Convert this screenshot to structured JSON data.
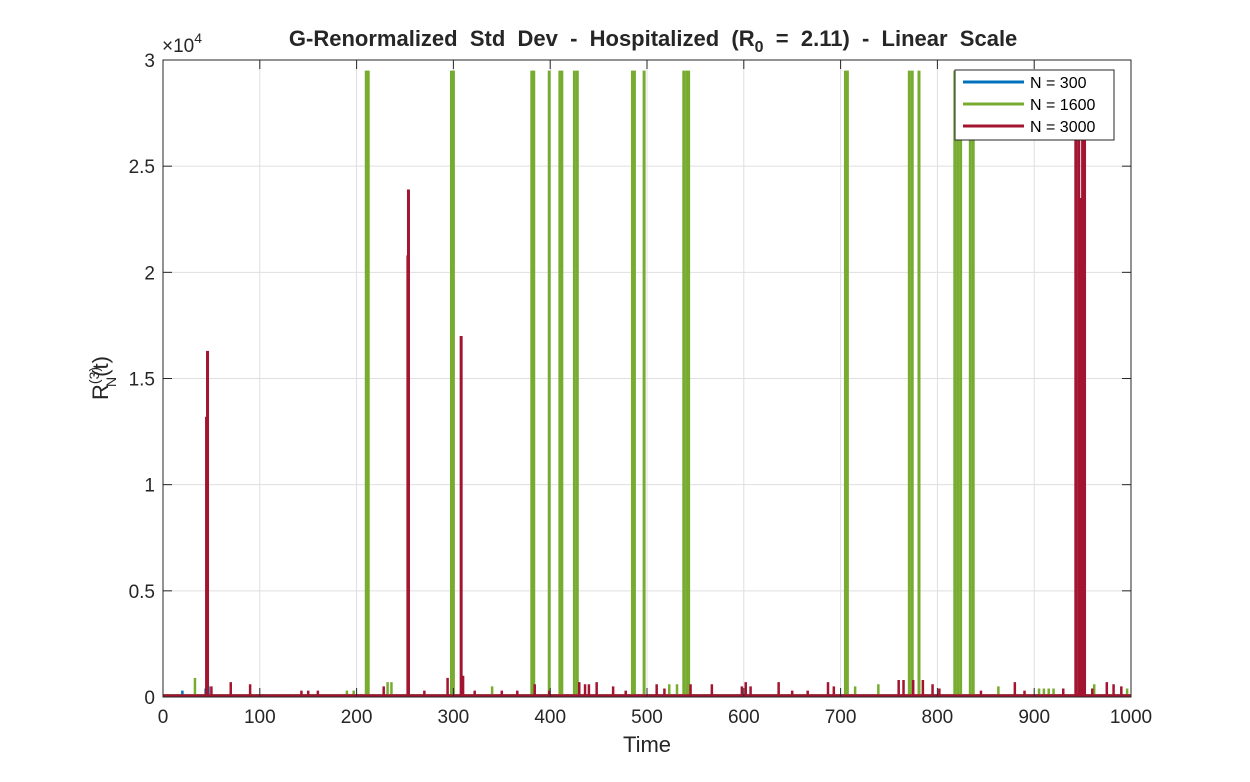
{
  "chart_data": {
    "type": "line",
    "title_parts": {
      "prefix": "G-Renormalized  Std  Dev  -  Hospitalized  (R",
      "subscript": "0",
      "suffix": "  =  2.11)  -  Linear  Scale"
    },
    "xlabel": "Time",
    "ylabel_parts": {
      "base": "R",
      "sup": "(3)",
      "sub": "N",
      "suffix": "(t)"
    },
    "xlim": [
      0,
      1000
    ],
    "ylim": [
      0,
      30000
    ],
    "x_ticks": [
      0,
      100,
      200,
      300,
      400,
      500,
      600,
      700,
      800,
      900,
      1000
    ],
    "y_ticks": [
      0,
      0.5,
      1,
      1.5,
      2,
      2.5,
      3
    ],
    "y_tick_labels": [
      "0",
      "0.5",
      "1",
      "1.5",
      "2",
      "2.5",
      "3"
    ],
    "y_exponent_label": {
      "base": "×10",
      "exp": "4"
    },
    "grid": true,
    "legend_position": "top-right",
    "series": [
      {
        "name": "N = 300",
        "color": "#0072BD",
        "spikes": [
          [
            20,
            300
          ],
          [
            44,
            400
          ],
          [
            47,
            500
          ]
        ]
      },
      {
        "name": "N = 1600",
        "color": "#77AC30",
        "spikes": [
          [
            33,
            900
          ],
          [
            190,
            300
          ],
          [
            197,
            300
          ],
          [
            210,
            29500
          ],
          [
            212,
            29500
          ],
          [
            232,
            700
          ],
          [
            236,
            700
          ],
          [
            298,
            29500
          ],
          [
            300,
            29500
          ],
          [
            340,
            500
          ],
          [
            381,
            29500
          ],
          [
            383,
            29500
          ],
          [
            399,
            29500
          ],
          [
            410,
            29500
          ],
          [
            412,
            29500
          ],
          [
            425,
            29500
          ],
          [
            428,
            29500
          ],
          [
            485,
            29500
          ],
          [
            487,
            29500
          ],
          [
            497,
            29500
          ],
          [
            523,
            600
          ],
          [
            531,
            600
          ],
          [
            538,
            29500
          ],
          [
            541,
            29500
          ],
          [
            543,
            29500
          ],
          [
            705,
            29500
          ],
          [
            707,
            29500
          ],
          [
            715,
            500
          ],
          [
            739,
            600
          ],
          [
            771,
            29500
          ],
          [
            774,
            29500
          ],
          [
            781,
            29500
          ],
          [
            818,
            29500
          ],
          [
            821,
            29500
          ],
          [
            824,
            29500
          ],
          [
            834,
            29500
          ],
          [
            837,
            29500
          ],
          [
            863,
            500
          ],
          [
            905,
            400
          ],
          [
            910,
            400
          ],
          [
            915,
            400
          ],
          [
            920,
            400
          ],
          [
            962,
            600
          ],
          [
            996,
            400
          ]
        ]
      },
      {
        "name": "N = 3000",
        "color": "#A2142F",
        "spikes": [
          [
            50,
            500
          ],
          [
            70,
            700
          ],
          [
            90,
            600
          ],
          [
            143,
            300
          ],
          [
            150,
            300
          ],
          [
            160,
            300
          ],
          [
            228,
            500
          ],
          [
            270,
            300
          ],
          [
            294,
            900
          ],
          [
            310,
            1000
          ],
          [
            322,
            300
          ],
          [
            350,
            300
          ],
          [
            366,
            300
          ],
          [
            384,
            600
          ],
          [
            399,
            300
          ],
          [
            430,
            700
          ],
          [
            436,
            600
          ],
          [
            440,
            600
          ],
          [
            448,
            700
          ],
          [
            465,
            500
          ],
          [
            478,
            300
          ],
          [
            510,
            600
          ],
          [
            518,
            400
          ],
          [
            545,
            600
          ],
          [
            567,
            600
          ],
          [
            598,
            500
          ],
          [
            602,
            700
          ],
          [
            607,
            500
          ],
          [
            636,
            700
          ],
          [
            650,
            300
          ],
          [
            666,
            300
          ],
          [
            687,
            700
          ],
          [
            693,
            500
          ],
          [
            760,
            800
          ],
          [
            765,
            800
          ],
          [
            775,
            800
          ],
          [
            785,
            800
          ],
          [
            795,
            600
          ],
          [
            802,
            400
          ],
          [
            845,
            300
          ],
          [
            880,
            700
          ],
          [
            890,
            300
          ],
          [
            930,
            400
          ],
          [
            960,
            400
          ],
          [
            975,
            700
          ],
          [
            982,
            600
          ],
          [
            990,
            500
          ],
          [
            45,
            13200
          ],
          [
            46,
            16300
          ],
          [
            253,
            20800
          ],
          [
            253.6,
            23900
          ],
          [
            308,
            17000
          ],
          [
            943,
            29500
          ],
          [
            946,
            29500
          ],
          [
            948,
            23500
          ],
          [
            950,
            29500
          ],
          [
            952,
            29500
          ]
        ]
      }
    ]
  }
}
